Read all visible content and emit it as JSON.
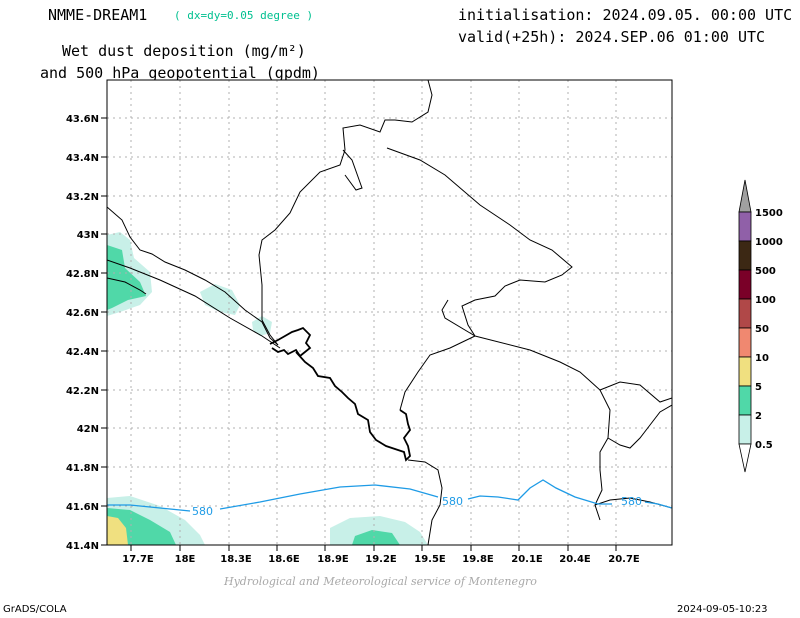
{
  "header": {
    "model": "NMME-DREAM1",
    "resolution": "( dx=dy=0.05 degree )",
    "initialisation": "initialisation: 2024.09.05. 00:00 UTC",
    "valid": "valid(+25h): 2024.SEP.06 01:00 UTC",
    "title_line1": "Wet dust deposition (mg/m²)",
    "title_line2": "and 500 hPa geopotential (gpdm)"
  },
  "map": {
    "lat_range": [
      41.4,
      43.8
    ],
    "lon_range": [
      17.45,
      20.95
    ],
    "lat_ticks": [
      "41.4N",
      "41.6N",
      "41.8N",
      "42N",
      "42.2N",
      "42.4N",
      "42.6N",
      "42.8N",
      "43N",
      "43.2N",
      "43.4N",
      "43.6N"
    ],
    "lon_ticks": [
      "17.7E",
      "18E",
      "18.3E",
      "18.6E",
      "18.9E",
      "19.2E",
      "19.5E",
      "19.8E",
      "20.1E",
      "20.4E",
      "20.7E"
    ],
    "grid": true,
    "contour": {
      "value": 580,
      "labels": [
        "580",
        "580",
        "580"
      ],
      "color": "#1e9be6"
    }
  },
  "legend": {
    "labels": [
      "1500",
      "1000",
      "500",
      "100",
      "50",
      "10",
      "5",
      "2",
      "0.5"
    ],
    "colors": [
      "#a0a0a0",
      "#9060a8",
      "#3c2814",
      "#7a0028",
      "#b04848",
      "#f08870",
      "#f0e080",
      "#50d8a8",
      "#c8f0e8"
    ]
  },
  "footer": {
    "credit": "Hydrological and Meteorological service of Montenegro",
    "left": "GrADS/COLA",
    "right": "2024-09-05-10:23"
  }
}
